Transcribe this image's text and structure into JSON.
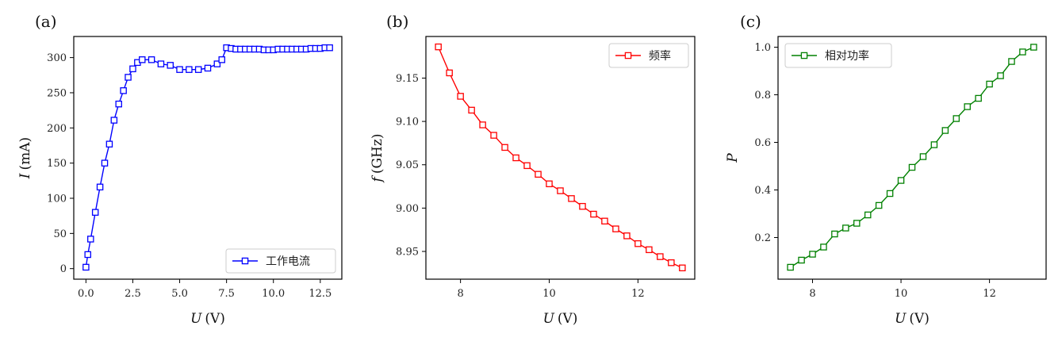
{
  "chart_data": [
    {
      "type": "line",
      "panel_label": "(a)",
      "xlabel": {
        "symbol": "U",
        "unit": "(V)"
      },
      "ylabel": {
        "symbol": "I",
        "unit": "(mA)"
      },
      "xlim": [
        -0.65,
        13.65
      ],
      "ylim": [
        -15,
        330
      ],
      "xticks": [
        0,
        2.5,
        5,
        7.5,
        10,
        12.5
      ],
      "xtick_labels": [
        "0.0",
        "2.5",
        "5.0",
        "7.5",
        "10.0",
        "12.5"
      ],
      "yticks": [
        0,
        50,
        100,
        150,
        200,
        250,
        300
      ],
      "ytick_labels": [
        "0",
        "50",
        "100",
        "150",
        "200",
        "250",
        "300"
      ],
      "legend_position": "lower-right",
      "marker": "square-open",
      "series": [
        {
          "name": "工作电流",
          "color": "#0000ff",
          "x": [
            0.0,
            0.1,
            0.25,
            0.5,
            0.75,
            1.0,
            1.25,
            1.5,
            1.75,
            2.0,
            2.25,
            2.5,
            2.75,
            3.0,
            3.5,
            4.0,
            4.5,
            5.0,
            5.5,
            6.0,
            6.5,
            7.0,
            7.25,
            7.5,
            7.75,
            8.0,
            8.25,
            8.5,
            8.75,
            9.0,
            9.25,
            9.5,
            9.75,
            10.0,
            10.25,
            10.5,
            10.75,
            11.0,
            11.25,
            11.5,
            11.75,
            12.0,
            12.25,
            12.5,
            12.75,
            13.0
          ],
          "y": [
            2,
            20,
            42,
            80,
            116,
            150,
            177,
            211,
            234,
            253,
            272,
            284,
            293,
            297,
            297,
            291,
            289,
            283,
            283,
            283,
            285,
            291,
            297,
            314,
            313,
            312,
            312,
            312,
            312,
            312,
            312,
            311,
            311,
            311,
            312,
            312,
            312,
            312,
            312,
            312,
            312,
            313,
            313,
            313,
            314,
            314
          ]
        }
      ]
    },
    {
      "type": "line",
      "panel_label": "(b)",
      "xlabel": {
        "symbol": "U",
        "unit": "(V)"
      },
      "ylabel": {
        "symbol": "f",
        "unit": "(GHz)"
      },
      "xlim": [
        7.22,
        13.28
      ],
      "ylim": [
        8.918,
        9.198
      ],
      "xticks": [
        8,
        10,
        12
      ],
      "xtick_labels": [
        "8",
        "10",
        "12"
      ],
      "yticks": [
        8.95,
        9.0,
        9.05,
        9.1,
        9.15
      ],
      "ytick_labels": [
        "8.95",
        "9.00",
        "9.05",
        "9.10",
        "9.15"
      ],
      "legend_position": "upper-right",
      "marker": "square-open",
      "series": [
        {
          "name": "频率",
          "color": "#ff0000",
          "x": [
            7.5,
            7.75,
            8.0,
            8.25,
            8.5,
            8.75,
            9.0,
            9.25,
            9.5,
            9.75,
            10.0,
            10.25,
            10.5,
            10.75,
            11.0,
            11.25,
            11.5,
            11.75,
            12.0,
            12.25,
            12.5,
            12.75,
            13.0
          ],
          "y": [
            9.186,
            9.156,
            9.129,
            9.113,
            9.096,
            9.084,
            9.07,
            9.058,
            9.049,
            9.039,
            9.028,
            9.02,
            9.011,
            9.002,
            8.993,
            8.985,
            8.976,
            8.968,
            8.959,
            8.952,
            8.944,
            8.937,
            8.931
          ]
        }
      ]
    },
    {
      "type": "line",
      "panel_label": "(c)",
      "xlabel": {
        "symbol": "U",
        "unit": "(V)"
      },
      "ylabel": {
        "symbol": "P",
        "unit": ""
      },
      "xlim": [
        7.22,
        13.28
      ],
      "ylim": [
        0.025,
        1.045
      ],
      "xticks": [
        8,
        10,
        12
      ],
      "xtick_labels": [
        "8",
        "10",
        "12"
      ],
      "yticks": [
        0.2,
        0.4,
        0.6,
        0.8,
        1.0
      ],
      "ytick_labels": [
        "0.2",
        "0.4",
        "0.6",
        "0.8",
        "1.0"
      ],
      "legend_position": "upper-left",
      "marker": "square-open",
      "series": [
        {
          "name": "相对功率",
          "color": "#008000",
          "x": [
            7.5,
            7.75,
            8.0,
            8.25,
            8.5,
            8.75,
            9.0,
            9.25,
            9.5,
            9.75,
            10.0,
            10.25,
            10.5,
            10.75,
            11.0,
            11.25,
            11.5,
            11.75,
            12.0,
            12.25,
            12.5,
            12.75,
            13.0
          ],
          "y": [
            0.075,
            0.105,
            0.13,
            0.16,
            0.215,
            0.24,
            0.26,
            0.295,
            0.335,
            0.385,
            0.44,
            0.495,
            0.54,
            0.59,
            0.65,
            0.7,
            0.75,
            0.785,
            0.845,
            0.88,
            0.94,
            0.98,
            1.0
          ]
        }
      ]
    }
  ]
}
